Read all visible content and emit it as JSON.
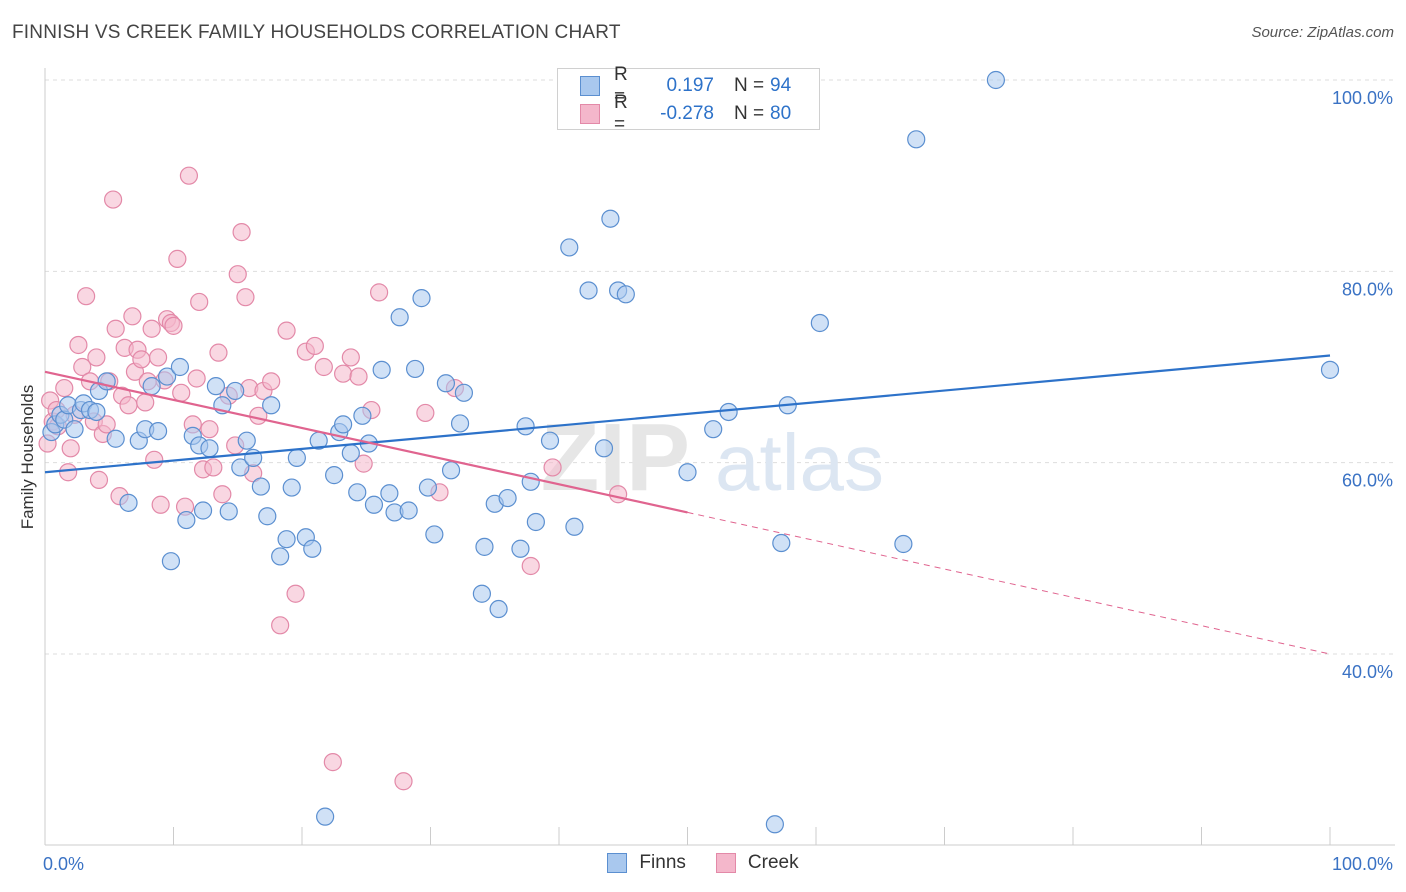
{
  "title": "FINNISH VS CREEK FAMILY HOUSEHOLDS CORRELATION CHART",
  "source": "Source: ZipAtlas.com",
  "legend": {
    "r_label": "R =",
    "n_label": "N =",
    "rows": [
      {
        "r": "0.197",
        "n": "94"
      },
      {
        "r": "-0.278",
        "n": "80"
      }
    ]
  },
  "colors": {
    "finns_fill": "#a9c8ee",
    "finns_stroke": "#5b8fd0",
    "finns_line": "#2d72c9",
    "creek_fill": "#f4b7cb",
    "creek_stroke": "#e389a8",
    "creek_line": "#e0648f",
    "tick_text": "#3a72c4",
    "grid": "#dddddd"
  },
  "chart_data": {
    "type": "scatter",
    "title": "FINNISH VS CREEK FAMILY HOUSEHOLDS CORRELATION CHART",
    "xlabel": "",
    "ylabel": "Family Households",
    "xlim": [
      0,
      100
    ],
    "ylim": [
      20,
      102
    ],
    "x_tick_labels": [
      "0.0%",
      "100.0%"
    ],
    "y_ticks": [
      40,
      60,
      80,
      100
    ],
    "y_tick_labels": [
      "40.0%",
      "60.0%",
      "80.0%",
      "100.0%"
    ],
    "grid": true,
    "legend_position": "top-center",
    "watermark": "ZIPatlas",
    "series": [
      {
        "name": "Finns",
        "r": 0.197,
        "n": 94,
        "trend": {
          "x": [
            0,
            100
          ],
          "y": [
            59.0,
            71.2
          ],
          "style": "solid"
        },
        "points": [
          [
            0.5,
            63.2
          ],
          [
            0.8,
            64.0
          ],
          [
            1.2,
            65.0
          ],
          [
            1.5,
            64.5
          ],
          [
            1.8,
            66.0
          ],
          [
            2.3,
            63.5
          ],
          [
            2.8,
            65.5
          ],
          [
            3.0,
            66.2
          ],
          [
            3.5,
            65.5
          ],
          [
            4.0,
            65.3
          ],
          [
            4.2,
            67.5
          ],
          [
            4.8,
            68.5
          ],
          [
            5.5,
            62.5
          ],
          [
            6.5,
            55.8
          ],
          [
            7.3,
            62.3
          ],
          [
            7.8,
            63.5
          ],
          [
            8.3,
            68.0
          ],
          [
            8.8,
            63.3
          ],
          [
            9.5,
            69.0
          ],
          [
            9.8,
            49.7
          ],
          [
            10.5,
            70.0
          ],
          [
            11.0,
            54.0
          ],
          [
            11.5,
            62.8
          ],
          [
            12.0,
            61.8
          ],
          [
            12.3,
            55.0
          ],
          [
            12.8,
            61.5
          ],
          [
            13.3,
            68.0
          ],
          [
            13.8,
            66.0
          ],
          [
            14.3,
            54.9
          ],
          [
            14.8,
            67.5
          ],
          [
            15.2,
            59.5
          ],
          [
            15.7,
            62.3
          ],
          [
            16.2,
            60.5
          ],
          [
            16.8,
            57.5
          ],
          [
            17.3,
            54.4
          ],
          [
            17.6,
            66.0
          ],
          [
            18.3,
            50.2
          ],
          [
            18.8,
            52.0
          ],
          [
            19.2,
            57.4
          ],
          [
            19.6,
            60.5
          ],
          [
            20.3,
            52.2
          ],
          [
            20.8,
            51.0
          ],
          [
            21.3,
            62.3
          ],
          [
            21.8,
            23.0
          ],
          [
            22.5,
            58.7
          ],
          [
            22.9,
            63.2
          ],
          [
            23.2,
            64.0
          ],
          [
            23.8,
            61.0
          ],
          [
            24.3,
            56.9
          ],
          [
            24.7,
            64.9
          ],
          [
            25.2,
            62.0
          ],
          [
            25.6,
            55.6
          ],
          [
            26.2,
            69.7
          ],
          [
            26.8,
            56.8
          ],
          [
            27.2,
            54.8
          ],
          [
            27.6,
            75.2
          ],
          [
            28.3,
            55.0
          ],
          [
            28.8,
            69.8
          ],
          [
            29.3,
            77.2
          ],
          [
            29.8,
            57.4
          ],
          [
            30.3,
            52.5
          ],
          [
            31.2,
            68.3
          ],
          [
            31.6,
            59.2
          ],
          [
            32.3,
            64.1
          ],
          [
            32.6,
            67.3
          ],
          [
            34.0,
            46.3
          ],
          [
            34.2,
            51.2
          ],
          [
            35.0,
            55.7
          ],
          [
            35.3,
            44.7
          ],
          [
            36.0,
            56.3
          ],
          [
            37.0,
            51.0
          ],
          [
            37.4,
            63.8
          ],
          [
            37.8,
            58.0
          ],
          [
            38.2,
            53.8
          ],
          [
            39.3,
            62.3
          ],
          [
            40.8,
            82.5
          ],
          [
            41.2,
            53.3
          ],
          [
            42.3,
            78.0
          ],
          [
            43.5,
            61.5
          ],
          [
            44.0,
            85.5
          ],
          [
            44.6,
            78.0
          ],
          [
            45.2,
            77.6
          ],
          [
            50.0,
            59.0
          ],
          [
            52.0,
            63.5
          ],
          [
            53.2,
            65.3
          ],
          [
            56.8,
            22.2
          ],
          [
            57.3,
            51.6
          ],
          [
            57.8,
            66.0
          ],
          [
            60.3,
            74.6
          ],
          [
            66.8,
            51.5
          ],
          [
            67.8,
            93.8
          ],
          [
            74.0,
            100.0
          ],
          [
            59.0,
            100.0
          ],
          [
            100.0,
            69.7
          ]
        ]
      },
      {
        "name": "Creek",
        "r": -0.278,
        "n": 80,
        "trend_solid": {
          "x": [
            0,
            50
          ],
          "y": [
            69.5,
            54.8
          ]
        },
        "trend_dashed": {
          "x": [
            50,
            100
          ],
          "y": [
            54.8,
            40.0
          ]
        },
        "points": [
          [
            0.2,
            62.0
          ],
          [
            0.4,
            66.5
          ],
          [
            0.6,
            64.3
          ],
          [
            0.9,
            65.5
          ],
          [
            1.0,
            63.8
          ],
          [
            1.5,
            67.8
          ],
          [
            1.8,
            59.0
          ],
          [
            2.0,
            61.5
          ],
          [
            2.3,
            65.0
          ],
          [
            2.6,
            72.3
          ],
          [
            2.9,
            70.0
          ],
          [
            3.2,
            77.4
          ],
          [
            3.5,
            68.5
          ],
          [
            3.8,
            64.3
          ],
          [
            4.0,
            71.0
          ],
          [
            4.2,
            58.2
          ],
          [
            4.5,
            63.0
          ],
          [
            4.8,
            64.0
          ],
          [
            5.0,
            68.5
          ],
          [
            5.3,
            87.5
          ],
          [
            5.5,
            74.0
          ],
          [
            5.8,
            56.5
          ],
          [
            6.0,
            67.0
          ],
          [
            6.2,
            72.0
          ],
          [
            6.5,
            66.0
          ],
          [
            6.8,
            75.3
          ],
          [
            7.0,
            69.5
          ],
          [
            7.2,
            71.8
          ],
          [
            7.5,
            70.8
          ],
          [
            7.8,
            66.3
          ],
          [
            8.0,
            68.5
          ],
          [
            8.3,
            74.0
          ],
          [
            8.5,
            60.3
          ],
          [
            8.8,
            71.0
          ],
          [
            9.0,
            55.6
          ],
          [
            9.3,
            68.6
          ],
          [
            9.5,
            75.0
          ],
          [
            9.8,
            74.6
          ],
          [
            10.0,
            74.3
          ],
          [
            10.3,
            81.3
          ],
          [
            10.6,
            67.3
          ],
          [
            10.9,
            55.4
          ],
          [
            11.2,
            90.0
          ],
          [
            11.5,
            64.0
          ],
          [
            11.8,
            68.8
          ],
          [
            12.0,
            76.8
          ],
          [
            12.3,
            59.3
          ],
          [
            12.8,
            63.5
          ],
          [
            13.1,
            59.5
          ],
          [
            13.5,
            71.5
          ],
          [
            13.8,
            56.7
          ],
          [
            14.3,
            67.0
          ],
          [
            14.8,
            61.8
          ],
          [
            15.0,
            79.7
          ],
          [
            15.3,
            84.1
          ],
          [
            15.6,
            77.3
          ],
          [
            15.9,
            67.8
          ],
          [
            16.2,
            58.9
          ],
          [
            16.6,
            64.9
          ],
          [
            17.0,
            67.5
          ],
          [
            17.6,
            68.5
          ],
          [
            18.3,
            43.0
          ],
          [
            18.8,
            73.8
          ],
          [
            19.5,
            46.3
          ],
          [
            20.3,
            71.6
          ],
          [
            21.0,
            72.2
          ],
          [
            21.7,
            70.0
          ],
          [
            22.4,
            28.7
          ],
          [
            23.2,
            69.3
          ],
          [
            23.8,
            71.0
          ],
          [
            24.4,
            69.0
          ],
          [
            24.8,
            59.9
          ],
          [
            25.4,
            65.5
          ],
          [
            26.0,
            77.8
          ],
          [
            27.9,
            26.7
          ],
          [
            29.6,
            65.2
          ],
          [
            30.7,
            56.9
          ],
          [
            31.9,
            67.8
          ],
          [
            37.8,
            49.2
          ],
          [
            39.5,
            59.5
          ],
          [
            44.6,
            56.7
          ]
        ]
      }
    ]
  }
}
